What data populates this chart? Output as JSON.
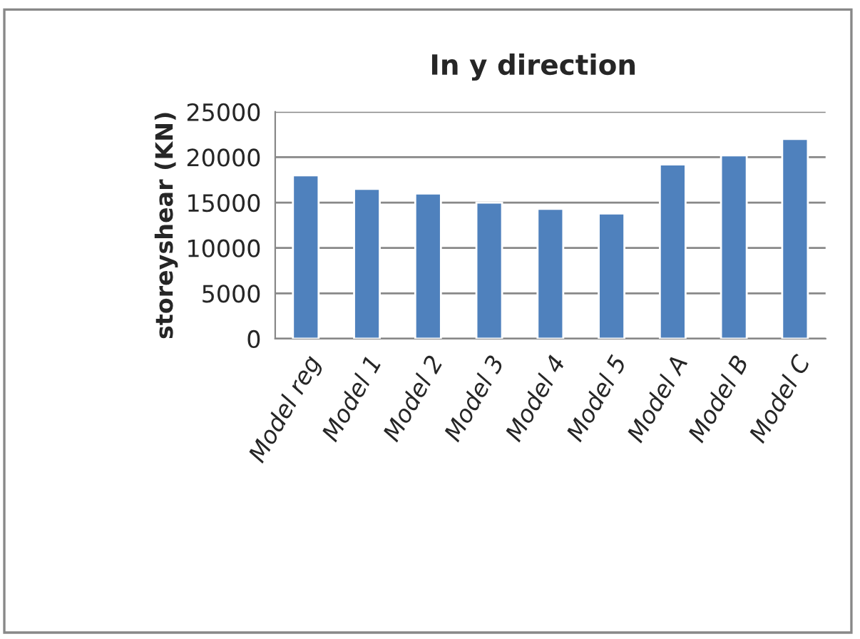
{
  "chart_data": {
    "type": "bar",
    "title": "In y direction",
    "ylabel": "storeyshear (KN)",
    "categories": [
      "Model reg",
      "Model 1",
      "Model 2",
      "Model 3",
      "Model 4",
      "Model 5",
      "Model A",
      "Model B",
      "Model C"
    ],
    "values": [
      18000,
      16500,
      16000,
      15000,
      14300,
      13800,
      19200,
      20200,
      22000
    ],
    "color": "#4f81bd",
    "ylim": [
      0,
      25000
    ],
    "yticks": [
      0,
      5000,
      10000,
      15000,
      20000,
      25000
    ],
    "grid": "y",
    "legend": false
  }
}
